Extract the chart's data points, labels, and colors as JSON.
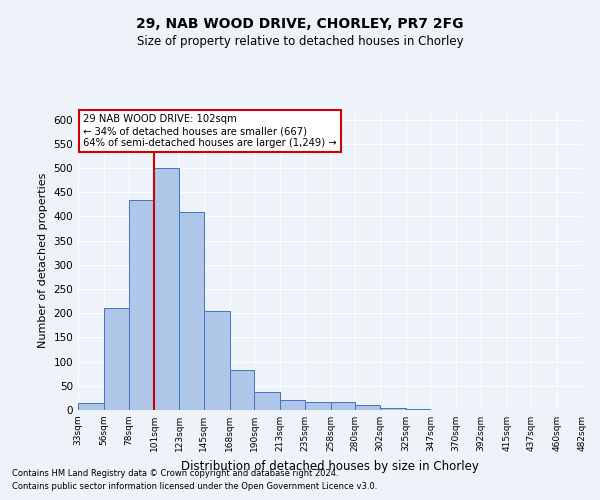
{
  "title_line1": "29, NAB WOOD DRIVE, CHORLEY, PR7 2FG",
  "title_line2": "Size of property relative to detached houses in Chorley",
  "xlabel": "Distribution of detached houses by size in Chorley",
  "ylabel": "Number of detached properties",
  "footnote1": "Contains HM Land Registry data © Crown copyright and database right 2024.",
  "footnote2": "Contains public sector information licensed under the Open Government Licence v3.0.",
  "annotation_line1": "29 NAB WOOD DRIVE: 102sqm",
  "annotation_line2": "← 34% of detached houses are smaller (667)",
  "annotation_line3": "64% of semi-detached houses are larger (1,249) →",
  "property_size": 102,
  "bin_edges": [
    33,
    56,
    78,
    101,
    123,
    145,
    168,
    190,
    213,
    235,
    258,
    280,
    302,
    325,
    347,
    370,
    392,
    415,
    437,
    460,
    482
  ],
  "bar_heights": [
    15,
    210,
    435,
    500,
    410,
    205,
    83,
    37,
    20,
    17,
    16,
    11,
    5,
    3,
    1,
    1,
    1,
    0,
    0,
    1
  ],
  "bar_color": "#aec6e8",
  "bar_edge_color": "#4472c4",
  "vline_color": "#cc0000",
  "vline_x": 101,
  "ylim": [
    0,
    620
  ],
  "yticks": [
    0,
    50,
    100,
    150,
    200,
    250,
    300,
    350,
    400,
    450,
    500,
    550,
    600
  ],
  "background_color": "#eef2f9",
  "grid_color": "#ffffff",
  "annotation_box_color": "#ffffff",
  "annotation_box_edge": "#cc0000"
}
